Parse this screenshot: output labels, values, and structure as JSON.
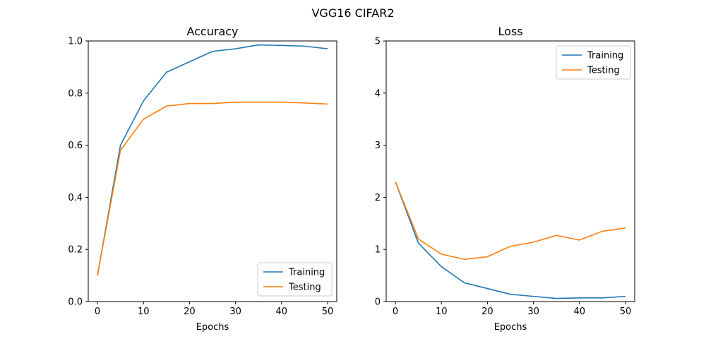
{
  "figure": {
    "title": "VGG16 CIFAR2"
  },
  "chart_data": [
    {
      "type": "line",
      "title": "Accuracy",
      "xlabel": "Epochs",
      "ylabel": "",
      "xlim": [
        -2,
        52
      ],
      "ylim": [
        0,
        1.0
      ],
      "xticks": [
        0,
        10,
        20,
        30,
        40,
        50
      ],
      "yticks": [
        0.0,
        0.2,
        0.4,
        0.6,
        0.8,
        1.0
      ],
      "ytick_labels": [
        "0.0",
        "0.2",
        "0.4",
        "0.6",
        "0.8",
        "1.0"
      ],
      "legend": "lower-right",
      "grid": false,
      "x": [
        0,
        5,
        10,
        15,
        20,
        25,
        30,
        35,
        40,
        45,
        50
      ],
      "series": [
        {
          "name": "Training",
          "color": "#1f77b4",
          "values": [
            0.1,
            0.6,
            0.77,
            0.88,
            0.92,
            0.96,
            0.97,
            0.985,
            0.983,
            0.98,
            0.97
          ]
        },
        {
          "name": "Testing",
          "color": "#ff7f0e",
          "values": [
            0.1,
            0.58,
            0.7,
            0.75,
            0.76,
            0.76,
            0.765,
            0.765,
            0.765,
            0.762,
            0.758
          ]
        }
      ]
    },
    {
      "type": "line",
      "title": "Loss",
      "xlabel": "Epochs",
      "ylabel": "",
      "xlim": [
        -2,
        52
      ],
      "ylim": [
        0,
        5
      ],
      "xticks": [
        0,
        10,
        20,
        30,
        40,
        50
      ],
      "yticks": [
        0,
        1,
        2,
        3,
        4,
        5
      ],
      "ytick_labels": [
        "0",
        "1",
        "2",
        "3",
        "4",
        "5"
      ],
      "legend": "upper-right",
      "grid": false,
      "x": [
        0,
        5,
        10,
        15,
        20,
        25,
        30,
        35,
        40,
        45,
        50
      ],
      "series": [
        {
          "name": "Training",
          "color": "#1f77b4",
          "values": [
            2.3,
            1.12,
            0.67,
            0.36,
            0.25,
            0.14,
            0.1,
            0.06,
            0.07,
            0.07,
            0.1
          ]
        },
        {
          "name": "Testing",
          "color": "#ff7f0e",
          "values": [
            2.3,
            1.2,
            0.91,
            0.81,
            0.86,
            1.06,
            1.14,
            1.27,
            1.18,
            1.35,
            1.41
          ]
        }
      ]
    }
  ]
}
